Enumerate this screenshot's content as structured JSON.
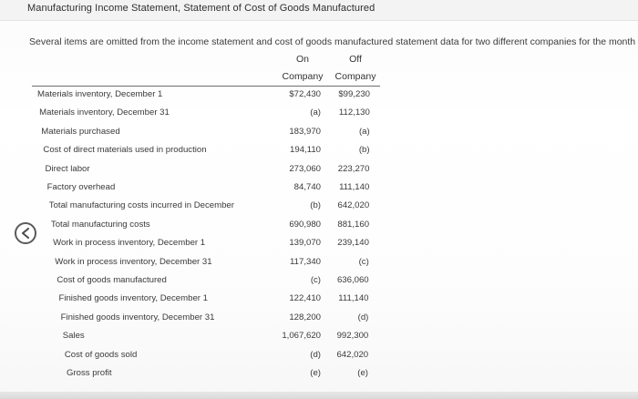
{
  "title": "Manufacturing Income Statement, Statement of Cost of Goods Manufactured",
  "intro": "Several items are omitted from the income statement and cost of goods manufactured statement data for two different companies for the month of",
  "columns": {
    "on": [
      "On",
      "Company"
    ],
    "off": [
      "Off",
      "Company"
    ]
  },
  "rows": [
    {
      "label": "Materials inventory, December 1",
      "on": "$72,430",
      "off": "$99,230"
    },
    {
      "label": "Materials inventory, December 31",
      "on": "(a)",
      "off": "112,130"
    },
    {
      "label": "Materials purchased",
      "on": "183,970",
      "off": "(a)"
    },
    {
      "label": "Cost of direct materials used in production",
      "on": "194,110",
      "off": "(b)"
    },
    {
      "label": "Direct labor",
      "on": "273,060",
      "off": "223,270"
    },
    {
      "label": "Factory overhead",
      "on": "84,740",
      "off": "111,140"
    },
    {
      "label": "Total manufacturing costs incurred in December",
      "on": "(b)",
      "off": "642,020"
    },
    {
      "label": "Total manufacturing costs",
      "on": "690,980",
      "off": "881,160"
    },
    {
      "label": "Work in process inventory, December 1",
      "on": "139,070",
      "off": "239,140"
    },
    {
      "label": "Work in process inventory, December 31",
      "on": "117,340",
      "off": "(c)"
    },
    {
      "label": "Cost of goods manufactured",
      "on": "(c)",
      "off": "636,060"
    },
    {
      "label": "Finished goods inventory, December 1",
      "on": "122,410",
      "off": "111,140"
    },
    {
      "label": "Finished goods inventory, December 31",
      "on": "128,200",
      "off": "(d)"
    },
    {
      "label": "Sales",
      "on": "1,067,620",
      "off": "992,300"
    },
    {
      "label": "Cost of goods sold",
      "on": "(d)",
      "off": "642,020"
    },
    {
      "label": "Gross profit",
      "on": "(e)",
      "off": "(e)"
    }
  ],
  "icons": {
    "back": "chevron-left-icon"
  }
}
